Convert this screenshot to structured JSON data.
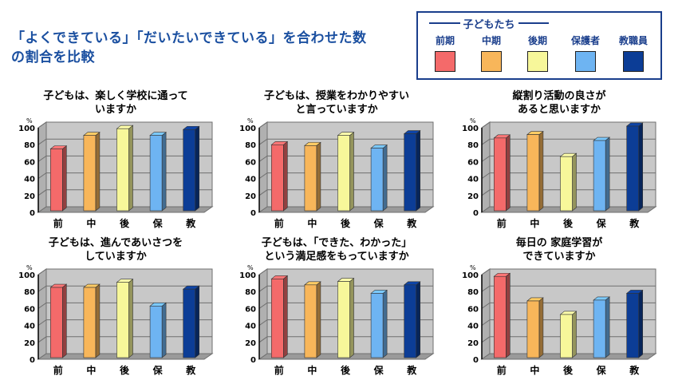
{
  "main_title": "「よくできている」「だいたいできている」を合わせた数\n の割合を比較",
  "legend": {
    "group_label": "子どもたち",
    "items": [
      {
        "label": "前期",
        "color": "#f46a6a"
      },
      {
        "label": "中期",
        "color": "#f8b65a"
      },
      {
        "label": "後期",
        "color": "#f7f79a"
      },
      {
        "label": "保護者",
        "color": "#6eb4f2"
      },
      {
        "label": "教職員",
        "color": "#0c3d96"
      }
    ]
  },
  "percent_unit": "%",
  "chart_data": [
    {
      "type": "bar",
      "title": "子どもは、楽しく学校に通って\nいますか",
      "categories": [
        "前",
        "中",
        "後",
        "保",
        "教"
      ],
      "values": [
        73,
        89,
        97,
        89,
        96
      ],
      "yticks": [
        "0",
        "20",
        "40",
        "60",
        "80",
        "100"
      ],
      "ylim": [
        0,
        100
      ]
    },
    {
      "type": "bar",
      "title": "子どもは、授業をわかりやすい\nと言っていますか",
      "categories": [
        "前",
        "中",
        "後",
        "保",
        "教"
      ],
      "values": [
        78,
        77,
        89,
        74,
        91
      ],
      "yticks": [
        "0",
        "20",
        "40",
        "60",
        "80",
        "100"
      ],
      "ylim": [
        0,
        100
      ]
    },
    {
      "type": "bar",
      "title": "縦割り活動の良さが\nあると思いますか",
      "categories": [
        "前",
        "中",
        "後",
        "保",
        "教"
      ],
      "values": [
        86,
        90,
        64,
        83,
        100
      ],
      "yticks": [
        "0",
        "20",
        "40",
        "60",
        "80",
        "100"
      ],
      "ylim": [
        0,
        100
      ]
    },
    {
      "type": "bar",
      "title": "子どもは、進んであいさつを\nしていますか",
      "categories": [
        "前",
        "中",
        "後",
        "保",
        "教"
      ],
      "values": [
        83,
        83,
        89,
        61,
        81
      ],
      "yticks": [
        "0",
        "20",
        "40",
        "60",
        "80",
        "100"
      ],
      "ylim": [
        0,
        100
      ]
    },
    {
      "type": "bar",
      "title": "子どもは、「できた、わかった」\nという満足感をもっていますか",
      "categories": [
        "前",
        "中",
        "後",
        "保",
        "教"
      ],
      "values": [
        93,
        86,
        90,
        76,
        86
      ],
      "yticks": [
        "0",
        "20",
        "40",
        "60",
        "80",
        "100"
      ],
      "ylim": [
        0,
        100
      ]
    },
    {
      "type": "bar",
      "title": "毎日の 家庭学習が\nできていますか",
      "categories": [
        "前",
        "中",
        "後",
        "保",
        "教"
      ],
      "values": [
        96,
        67,
        51,
        68,
        76
      ],
      "yticks": [
        "0",
        "20",
        "40",
        "60",
        "80",
        "100"
      ],
      "ylim": [
        0,
        100
      ]
    }
  ]
}
